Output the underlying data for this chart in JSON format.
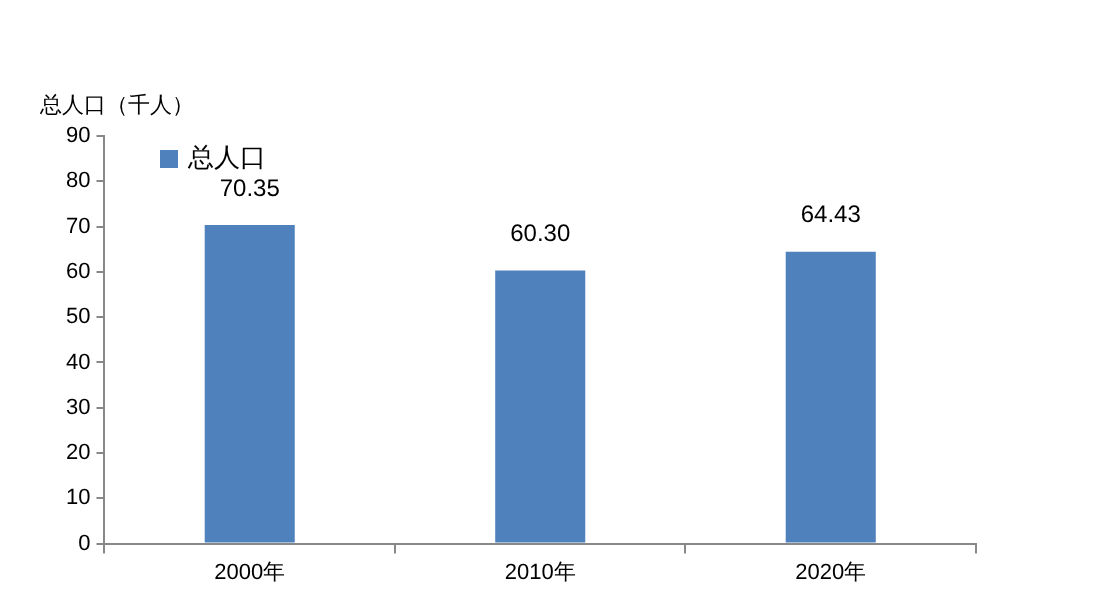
{
  "chart_data": {
    "type": "bar",
    "ylabel": "总人口（千人）",
    "categories": [
      "2000年",
      "2010年",
      "2020年"
    ],
    "series": [
      {
        "name": "总人口",
        "color": "#4f81bd",
        "values": [
          70.35,
          60.3,
          64.43
        ]
      }
    ],
    "value_labels": [
      "70.35",
      "60.30",
      "64.43"
    ],
    "ylim": [
      0,
      90
    ],
    "yticks": [
      0,
      10,
      20,
      30,
      40,
      50,
      60,
      70,
      80,
      90
    ],
    "legend": "top left"
  }
}
